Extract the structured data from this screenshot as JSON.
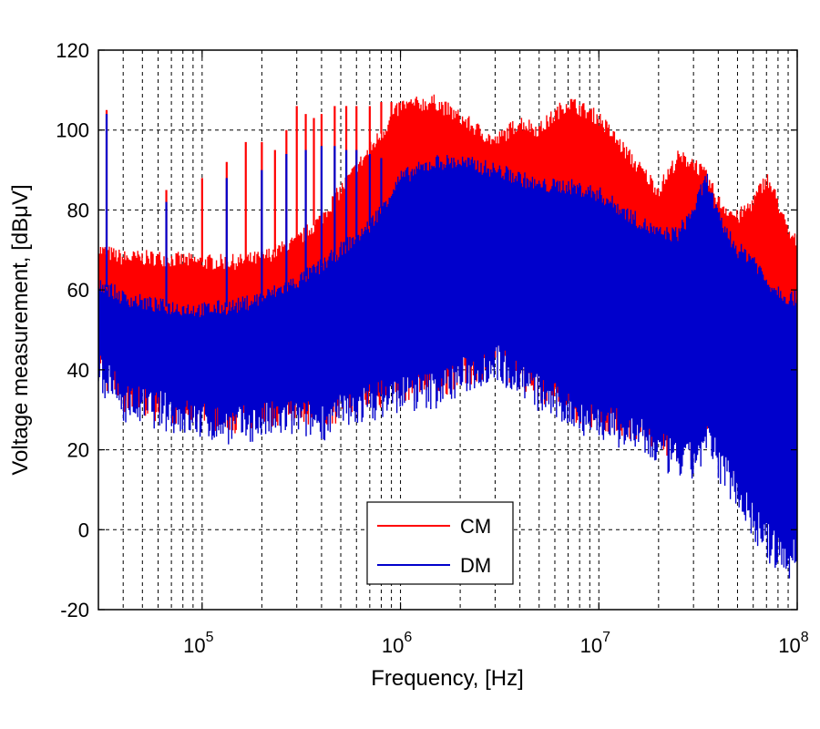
{
  "chart_data": {
    "type": "line",
    "x_scale": "log",
    "xlabel": "Frequency, [Hz]",
    "ylabel": "Voltage measurement, [dBμV]",
    "xlim": [
      30000,
      100000000
    ],
    "ylim": [
      -20,
      120
    ],
    "grid": true,
    "grid_style": "dashed",
    "legend_position": "lower-center",
    "x_ticks": [
      {
        "value": 100000,
        "base": "10",
        "exp": "5"
      },
      {
        "value": 1000000,
        "base": "10",
        "exp": "6"
      },
      {
        "value": 10000000,
        "base": "10",
        "exp": "7"
      },
      {
        "value": 100000000,
        "base": "10",
        "exp": "8"
      }
    ],
    "y_ticks": [
      {
        "value": -20,
        "label": "-20"
      },
      {
        "value": 0,
        "label": "0"
      },
      {
        "value": 20,
        "label": "20"
      },
      {
        "value": 40,
        "label": "40"
      },
      {
        "value": 60,
        "label": "60"
      },
      {
        "value": 80,
        "label": "80"
      },
      {
        "value": 100,
        "label": "100"
      },
      {
        "value": 120,
        "label": "120"
      }
    ],
    "series": [
      {
        "name": "CM",
        "color": "#ff0000",
        "x": [
          30000,
          40000,
          60000,
          100000,
          150000,
          200000,
          300000,
          400000,
          500000,
          700000,
          1000000,
          1500000,
          2000000,
          3000000,
          4000000,
          5000000,
          7000000,
          10000000,
          15000000,
          20000000,
          25000000,
          30000000,
          35000000,
          40000000,
          50000000,
          60000000,
          70000000,
          80000000,
          90000000,
          100000000
        ],
        "upper": [
          70,
          68,
          68,
          67,
          67,
          68,
          72,
          78,
          85,
          95,
          106,
          107,
          103,
          97,
          102,
          100,
          107,
          103,
          92,
          85,
          93,
          92,
          88,
          82,
          78,
          82,
          88,
          82,
          74,
          72
        ],
        "lower": [
          40,
          32,
          30,
          28,
          27,
          28,
          30,
          28,
          30,
          32,
          35,
          35,
          38,
          42,
          38,
          35,
          30,
          28,
          25,
          22,
          20,
          20,
          28,
          25,
          15,
          10,
          5,
          0,
          -5,
          0
        ],
        "spikes": [
          {
            "x": 33000,
            "y": 105
          },
          {
            "x": 66000,
            "y": 85
          },
          {
            "x": 100000,
            "y": 88
          },
          {
            "x": 133000,
            "y": 92
          },
          {
            "x": 166000,
            "y": 97
          },
          {
            "x": 200000,
            "y": 97
          },
          {
            "x": 233000,
            "y": 95
          },
          {
            "x": 266000,
            "y": 100
          },
          {
            "x": 300000,
            "y": 106
          },
          {
            "x": 333000,
            "y": 104
          },
          {
            "x": 366000,
            "y": 103
          },
          {
            "x": 400000,
            "y": 104
          },
          {
            "x": 466000,
            "y": 106
          },
          {
            "x": 533000,
            "y": 106
          },
          {
            "x": 600000,
            "y": 106
          },
          {
            "x": 700000,
            "y": 106
          },
          {
            "x": 800000,
            "y": 107
          },
          {
            "x": 900000,
            "y": 107
          }
        ]
      },
      {
        "name": "DM",
        "color": "#0000cc",
        "x": [
          30000,
          40000,
          60000,
          100000,
          150000,
          200000,
          300000,
          400000,
          500000,
          700000,
          1000000,
          1500000,
          2000000,
          3000000,
          4000000,
          5000000,
          7000000,
          10000000,
          15000000,
          20000000,
          25000000,
          30000000,
          35000000,
          40000000,
          50000000,
          60000000,
          70000000,
          80000000,
          90000000,
          100000000
        ],
        "upper": [
          62,
          58,
          56,
          55,
          56,
          58,
          62,
          66,
          70,
          76,
          88,
          92,
          92,
          90,
          88,
          86,
          86,
          84,
          78,
          74,
          74,
          80,
          88,
          78,
          70,
          68,
          62,
          60,
          58,
          58
        ],
        "lower": [
          38,
          30,
          28,
          25,
          24,
          25,
          26,
          25,
          27,
          30,
          32,
          33,
          36,
          40,
          36,
          32,
          28,
          25,
          22,
          18,
          15,
          15,
          20,
          15,
          8,
          0,
          -5,
          -8,
          -10,
          -8
        ],
        "spikes": [
          {
            "x": 33000,
            "y": 104
          },
          {
            "x": 66000,
            "y": 82
          },
          {
            "x": 133000,
            "y": 88
          },
          {
            "x": 200000,
            "y": 90
          },
          {
            "x": 266000,
            "y": 94
          },
          {
            "x": 333000,
            "y": 95
          },
          {
            "x": 400000,
            "y": 96
          },
          {
            "x": 466000,
            "y": 96
          },
          {
            "x": 533000,
            "y": 95
          },
          {
            "x": 600000,
            "y": 95
          },
          {
            "x": 700000,
            "y": 94
          },
          {
            "x": 800000,
            "y": 93
          }
        ]
      }
    ]
  }
}
